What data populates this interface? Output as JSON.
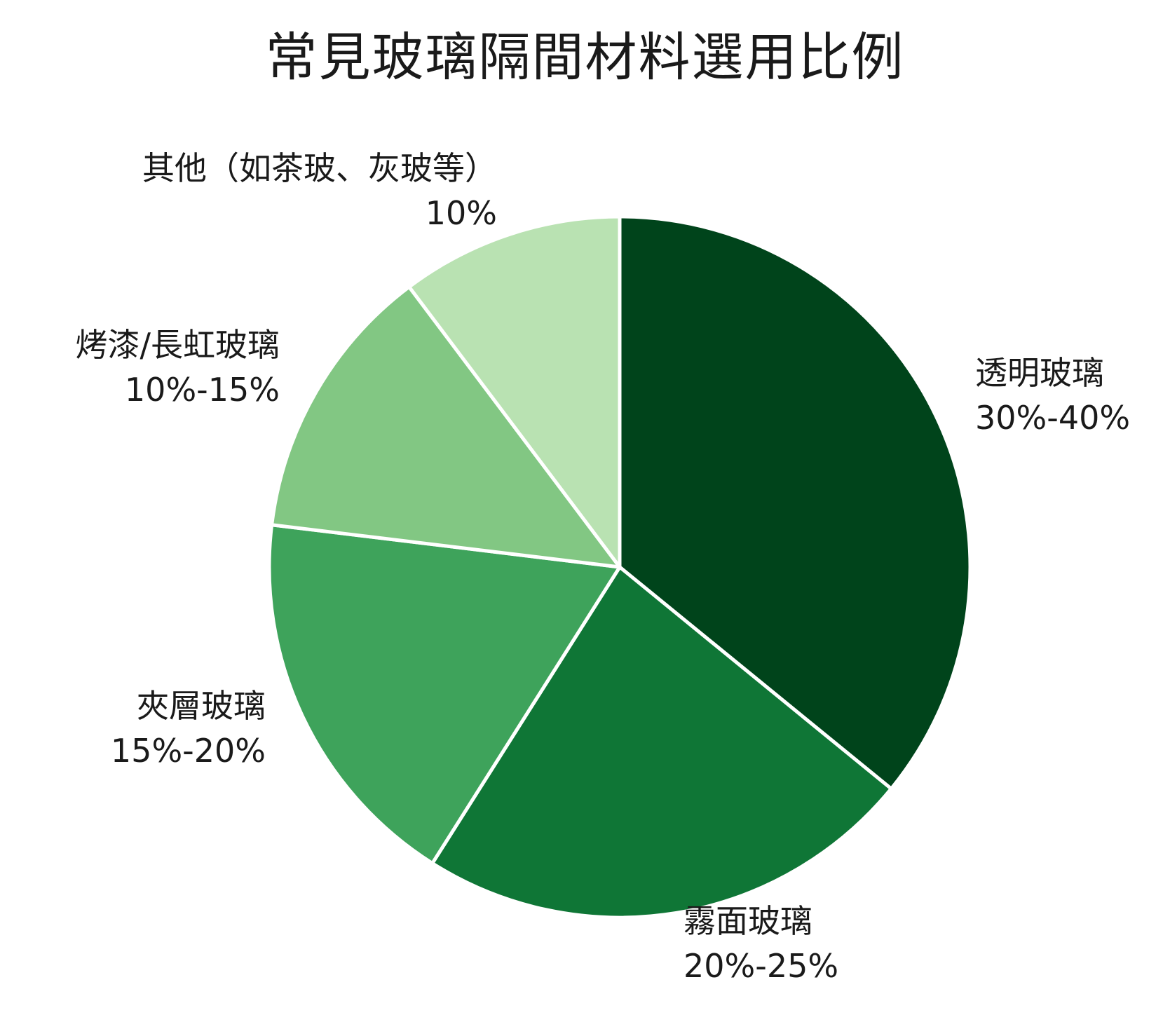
{
  "chart_data": {
    "type": "pie",
    "title": "常見玻璃隔間材料選用比例",
    "slices": [
      {
        "name": "透明玻璃",
        "label": "30%-40%",
        "value": 35,
        "color": "#00441b"
      },
      {
        "name": "霧面玻璃",
        "label": "20%-25%",
        "value": 22.5,
        "color": "#0f7636"
      },
      {
        "name": "夾層玻璃",
        "label": "15%-20%",
        "value": 17.5,
        "color": "#3ea35b"
      },
      {
        "name": "烤漆/長虹玻璃",
        "label": "10%-15%",
        "value": 12.5,
        "color": "#82c783"
      },
      {
        "name": "其他（如茶玻、灰玻等）",
        "label": "10%",
        "value": 10,
        "color": "#b9e2b2"
      }
    ],
    "start_angle": "12 o'clock",
    "direction": "clockwise"
  }
}
